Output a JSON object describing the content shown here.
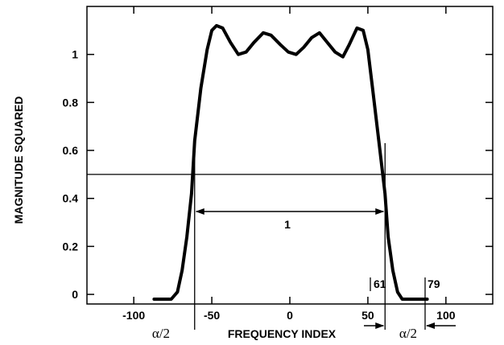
{
  "chart_data": {
    "type": "line",
    "xlabel": "FREQUENCY INDEX",
    "ylabel": "MAGNITUDE SQUARED",
    "xlim": [
      -130,
      130
    ],
    "ylim": [
      -0.04,
      1.2
    ],
    "x_ticks": [
      {
        "value": -100,
        "label": "-100"
      },
      {
        "value": -50,
        "label": "-50"
      },
      {
        "value": 0,
        "label": "0"
      },
      {
        "value": 50,
        "label": "50"
      },
      {
        "value": 100,
        "label": "100"
      }
    ],
    "y_ticks": [
      {
        "value": 0,
        "label": "0"
      },
      {
        "value": 0.2,
        "label": "0.2"
      },
      {
        "value": 0.4,
        "label": "0.4"
      },
      {
        "value": 0.6,
        "label": "0.6"
      },
      {
        "value": 0.8,
        "label": "0.8"
      },
      {
        "value": 1,
        "label": "1"
      }
    ],
    "grid": false,
    "series": [
      {
        "x": [
          -87,
          -76,
          -72,
          -69,
          -66,
          -63,
          -61,
          -57,
          -53,
          -50,
          -47,
          -43,
          -38,
          -33,
          -28,
          -23,
          -17,
          -12,
          -6,
          -1,
          4,
          9,
          14,
          19,
          24,
          29,
          34,
          38,
          43,
          47,
          50,
          53,
          57,
          61,
          63,
          66,
          69,
          72,
          76,
          88
        ],
        "y": [
          -0.02,
          -0.02,
          0.01,
          0.1,
          0.24,
          0.42,
          0.64,
          0.86,
          1.02,
          1.1,
          1.12,
          1.11,
          1.05,
          1.0,
          1.01,
          1.05,
          1.09,
          1.08,
          1.04,
          1.01,
          1.0,
          1.03,
          1.07,
          1.09,
          1.05,
          1.01,
          0.99,
          1.04,
          1.11,
          1.1,
          1.02,
          0.86,
          0.64,
          0.42,
          0.24,
          0.1,
          0.01,
          -0.02,
          -0.02,
          -0.02
        ]
      }
    ],
    "reference_lines": [
      {
        "type": "horizontal",
        "value": 0.5
      },
      {
        "type": "vertical",
        "value": -61
      },
      {
        "type": "vertical",
        "value": 61
      }
    ],
    "annotations": {
      "bandwidth_label": "1",
      "edge_labels": [
        "61",
        "79"
      ],
      "alpha_label": "α/2"
    }
  }
}
